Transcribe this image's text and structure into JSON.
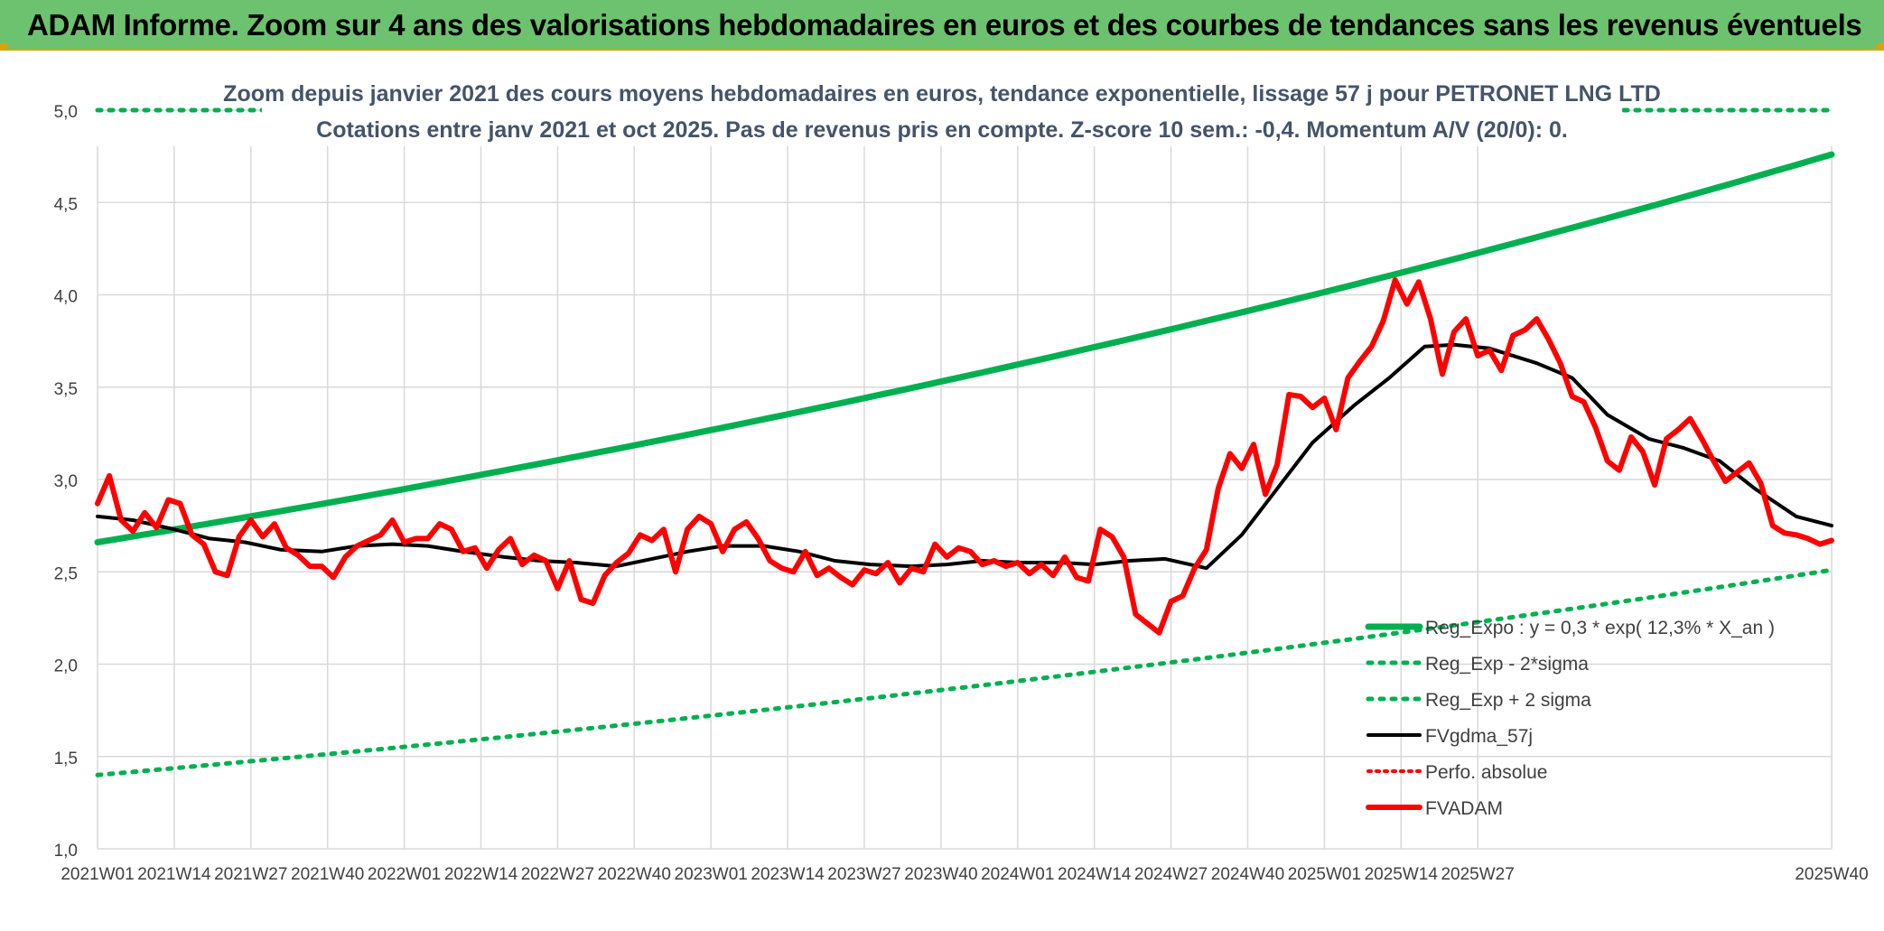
{
  "banner": {
    "title": "ADAM Informe. Zoom sur 4 ans des valorisations hebdomadaires en euros et des courbes de tendances sans les revenus éventuels"
  },
  "colors": {
    "banner_bg": "#6cc26e",
    "reg_expo": "#00b050",
    "sigma": "#00b050",
    "fvgdma": "#000000",
    "perfo": "#ff0000",
    "fvadam": "#ff0000"
  },
  "chart_data": {
    "type": "line",
    "title_line1": "Zoom depuis janvier 2021 des cours moyens hebdomadaires en euros, tendance exponentielle, lissage 57 j pour PETRONET LNG LTD",
    "title_line2": "Cotations entre janv 2021 et oct 2025. Pas de revenus pris en compte. Z-score 10 sem.: -0,4. Momentum A/V (20/0): 0.",
    "ylim": [
      1.0,
      5.0
    ],
    "y_ticks": [
      "1,0",
      "1,5",
      "2,0",
      "2,5",
      "3,0",
      "3,5",
      "4,0",
      "4,5",
      "5,0"
    ],
    "x_ticks": [
      "2021W01",
      "2021W14",
      "2021W27",
      "2021W40",
      "2022W01",
      "2022W14",
      "2022W27",
      "2022W40",
      "2023W01",
      "2023W14",
      "2023W27",
      "2023W40",
      "2024W01",
      "2024W14",
      "2024W27",
      "2024W40",
      "2025W01",
      "2025W14",
      "2025W27",
      "2025W40"
    ],
    "n_weeks": 250,
    "series": [
      {
        "name": "Reg_Expo : y = 0,3 * exp( 12,3% *  X_an )",
        "style": "solid-thick",
        "start": 2.66,
        "end": 4.76
      },
      {
        "name": "Reg_Exp - 2*sigma",
        "style": "dotted",
        "start": 1.4,
        "end": 2.51
      },
      {
        "name": "Reg_Exp + 2 sigma",
        "style": "dotted",
        "start": 5.0,
        "end": 5.0
      },
      {
        "name": "FVgdma_57j",
        "style": "solid",
        "points": [
          [
            0,
            2.8
          ],
          [
            6,
            2.78
          ],
          [
            13,
            2.73
          ],
          [
            19,
            2.68
          ],
          [
            25,
            2.66
          ],
          [
            31,
            2.62
          ],
          [
            38,
            2.61
          ],
          [
            44,
            2.64
          ],
          [
            50,
            2.65
          ],
          [
            56,
            2.64
          ],
          [
            62,
            2.61
          ],
          [
            69,
            2.58
          ],
          [
            75,
            2.56
          ],
          [
            81,
            2.55
          ],
          [
            88,
            2.53
          ],
          [
            94,
            2.57
          ],
          [
            100,
            2.61
          ],
          [
            106,
            2.64
          ],
          [
            113,
            2.64
          ],
          [
            119,
            2.61
          ],
          [
            125,
            2.56
          ],
          [
            131,
            2.54
          ],
          [
            138,
            2.53
          ],
          [
            144,
            2.54
          ],
          [
            150,
            2.56
          ],
          [
            156,
            2.55
          ],
          [
            163,
            2.55
          ],
          [
            169,
            2.54
          ],
          [
            175,
            2.56
          ],
          [
            181,
            2.57
          ],
          [
            188,
            2.52
          ],
          [
            194,
            2.7
          ],
          [
            200,
            2.95
          ],
          [
            206,
            3.2
          ],
          [
            213,
            3.4
          ],
          [
            219,
            3.55
          ],
          [
            225,
            3.72
          ],
          [
            230,
            3.73
          ],
          [
            236,
            3.71
          ],
          [
            244,
            3.63
          ],
          [
            250,
            3.55
          ],
          [
            256,
            3.35
          ],
          [
            263,
            3.22
          ],
          [
            269,
            3.17
          ],
          [
            275,
            3.1
          ],
          [
            281,
            2.95
          ],
          [
            288,
            2.8
          ],
          [
            294,
            2.75
          ]
        ]
      },
      {
        "name": "Perfo. absolue",
        "style": "dotted-red",
        "points": []
      },
      {
        "name": "FVADAM",
        "style": "solid-thick-red",
        "points": [
          [
            0,
            2.87
          ],
          [
            2,
            3.02
          ],
          [
            4,
            2.78
          ],
          [
            6,
            2.72
          ],
          [
            8,
            2.82
          ],
          [
            10,
            2.74
          ],
          [
            12,
            2.89
          ],
          [
            14,
            2.87
          ],
          [
            16,
            2.7
          ],
          [
            18,
            2.65
          ],
          [
            20,
            2.5
          ],
          [
            22,
            2.48
          ],
          [
            24,
            2.69
          ],
          [
            26,
            2.78
          ],
          [
            28,
            2.69
          ],
          [
            30,
            2.76
          ],
          [
            32,
            2.63
          ],
          [
            34,
            2.59
          ],
          [
            36,
            2.53
          ],
          [
            38,
            2.53
          ],
          [
            40,
            2.47
          ],
          [
            42,
            2.58
          ],
          [
            44,
            2.64
          ],
          [
            46,
            2.67
          ],
          [
            48,
            2.7
          ],
          [
            50,
            2.78
          ],
          [
            52,
            2.66
          ],
          [
            54,
            2.68
          ],
          [
            56,
            2.68
          ],
          [
            58,
            2.76
          ],
          [
            60,
            2.73
          ],
          [
            62,
            2.61
          ],
          [
            64,
            2.63
          ],
          [
            66,
            2.52
          ],
          [
            68,
            2.62
          ],
          [
            70,
            2.68
          ],
          [
            72,
            2.54
          ],
          [
            74,
            2.59
          ],
          [
            76,
            2.56
          ],
          [
            78,
            2.41
          ],
          [
            80,
            2.56
          ],
          [
            82,
            2.35
          ],
          [
            84,
            2.33
          ],
          [
            86,
            2.48
          ],
          [
            88,
            2.55
          ],
          [
            90,
            2.6
          ],
          [
            92,
            2.7
          ],
          [
            94,
            2.67
          ],
          [
            96,
            2.73
          ],
          [
            98,
            2.5
          ],
          [
            100,
            2.73
          ],
          [
            102,
            2.8
          ],
          [
            104,
            2.76
          ],
          [
            106,
            2.61
          ],
          [
            108,
            2.73
          ],
          [
            110,
            2.77
          ],
          [
            112,
            2.68
          ],
          [
            114,
            2.56
          ],
          [
            116,
            2.52
          ],
          [
            118,
            2.5
          ],
          [
            120,
            2.61
          ],
          [
            122,
            2.48
          ],
          [
            124,
            2.52
          ],
          [
            126,
            2.47
          ],
          [
            128,
            2.43
          ],
          [
            130,
            2.51
          ],
          [
            132,
            2.49
          ],
          [
            134,
            2.55
          ],
          [
            136,
            2.44
          ],
          [
            138,
            2.52
          ],
          [
            140,
            2.5
          ],
          [
            142,
            2.65
          ],
          [
            144,
            2.58
          ],
          [
            146,
            2.63
          ],
          [
            148,
            2.61
          ],
          [
            150,
            2.54
          ],
          [
            152,
            2.56
          ],
          [
            154,
            2.53
          ],
          [
            156,
            2.55
          ],
          [
            158,
            2.49
          ],
          [
            160,
            2.54
          ],
          [
            162,
            2.48
          ],
          [
            164,
            2.58
          ],
          [
            166,
            2.47
          ],
          [
            168,
            2.45
          ],
          [
            170,
            2.73
          ],
          [
            172,
            2.69
          ],
          [
            174,
            2.58
          ],
          [
            176,
            2.27
          ],
          [
            178,
            2.22
          ],
          [
            180,
            2.17
          ],
          [
            182,
            2.34
          ],
          [
            184,
            2.37
          ],
          [
            186,
            2.52
          ],
          [
            188,
            2.62
          ],
          [
            190,
            2.95
          ],
          [
            192,
            3.14
          ],
          [
            194,
            3.06
          ],
          [
            196,
            3.19
          ],
          [
            198,
            2.92
          ],
          [
            200,
            3.08
          ],
          [
            202,
            3.46
          ],
          [
            204,
            3.45
          ],
          [
            206,
            3.39
          ],
          [
            208,
            3.44
          ],
          [
            210,
            3.27
          ],
          [
            212,
            3.55
          ],
          [
            214,
            3.64
          ],
          [
            216,
            3.72
          ],
          [
            218,
            3.86
          ],
          [
            220,
            4.08
          ],
          [
            222,
            3.95
          ],
          [
            224,
            4.07
          ],
          [
            226,
            3.87
          ],
          [
            228,
            3.57
          ],
          [
            230,
            3.8
          ],
          [
            232,
            3.87
          ],
          [
            234,
            3.67
          ],
          [
            236,
            3.7
          ],
          [
            238,
            3.59
          ],
          [
            240,
            3.78
          ],
          [
            242,
            3.81
          ],
          [
            244,
            3.87
          ],
          [
            246,
            3.76
          ],
          [
            248,
            3.63
          ],
          [
            250,
            3.45
          ],
          [
            252,
            3.42
          ],
          [
            254,
            3.28
          ],
          [
            256,
            3.1
          ],
          [
            258,
            3.05
          ],
          [
            260,
            3.23
          ],
          [
            262,
            3.15
          ],
          [
            264,
            2.97
          ],
          [
            266,
            3.22
          ],
          [
            268,
            3.27
          ],
          [
            270,
            3.33
          ],
          [
            272,
            3.22
          ],
          [
            274,
            3.1
          ],
          [
            276,
            2.99
          ],
          [
            278,
            3.04
          ],
          [
            280,
            3.09
          ],
          [
            282,
            2.98
          ],
          [
            284,
            2.75
          ],
          [
            286,
            2.71
          ],
          [
            288,
            2.7
          ],
          [
            290,
            2.68
          ],
          [
            292,
            2.65
          ],
          [
            294,
            2.67
          ]
        ]
      }
    ]
  }
}
